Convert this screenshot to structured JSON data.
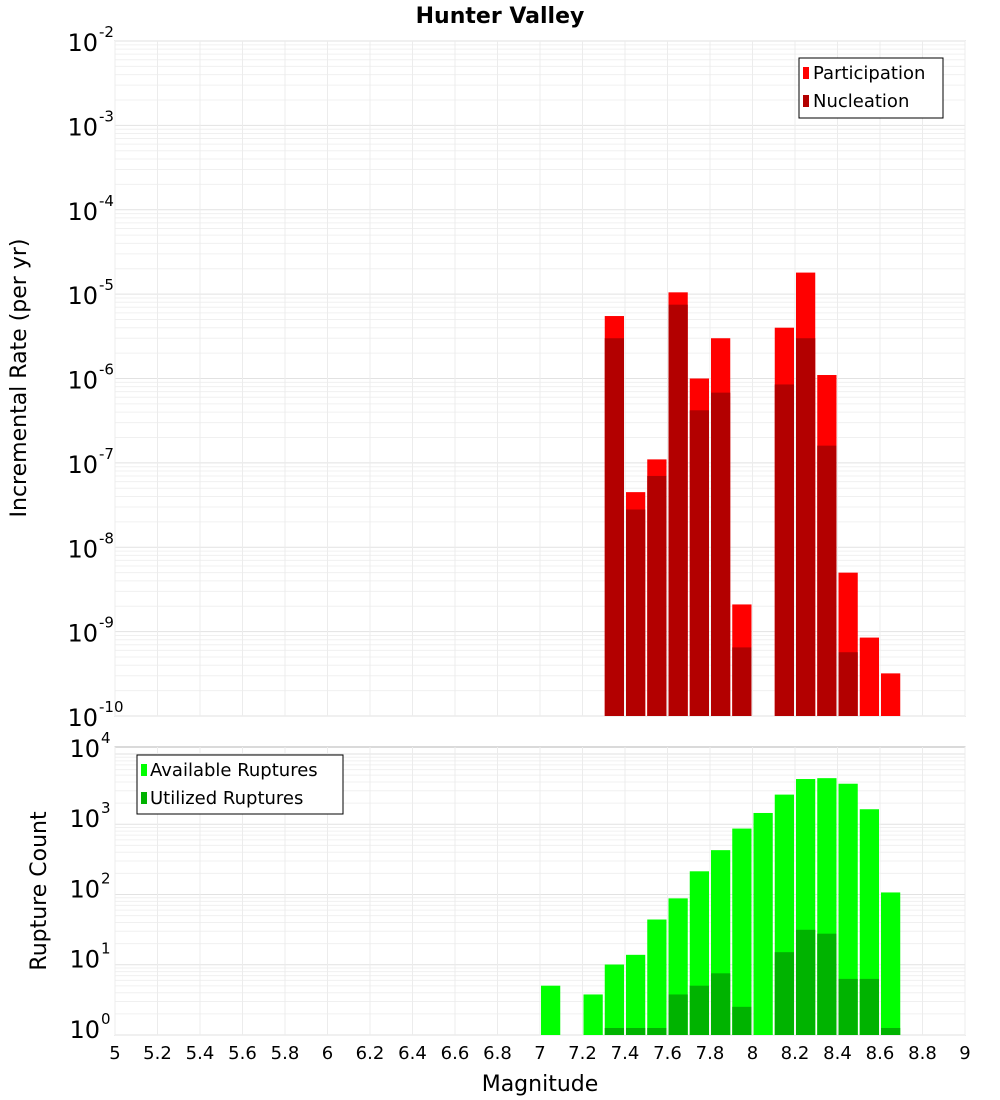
{
  "chart_data": [
    {
      "type": "bar",
      "title": "Hunter Valley",
      "xlabel": "",
      "ylabel": "Incremental Rate (per yr)",
      "yscale": "log",
      "ylim": [
        1e-10,
        0.01
      ],
      "xlim": [
        5,
        9
      ],
      "grid": true,
      "legend_position": "top-right",
      "series": [
        {
          "name": "Participation",
          "color": "#ff0000",
          "x": [
            7.35,
            7.45,
            7.55,
            7.65,
            7.75,
            7.85,
            7.95,
            8.15,
            8.25,
            8.35,
            8.45,
            8.55,
            8.65
          ],
          "values": [
            5.5e-06,
            4.5e-08,
            1.1e-07,
            1.05e-05,
            1e-06,
            3e-06,
            2.1e-09,
            4e-06,
            1.8e-05,
            1.1e-06,
            5e-09,
            8.5e-10,
            3.2e-10
          ]
        },
        {
          "name": "Nucleation",
          "color": "#b30000",
          "x": [
            7.35,
            7.45,
            7.55,
            7.65,
            7.75,
            7.85,
            7.95,
            8.15,
            8.25,
            8.35,
            8.45
          ],
          "values": [
            3e-06,
            2.8e-08,
            7e-08,
            7.5e-06,
            4.2e-07,
            6.8e-07,
            6.5e-10,
            8.5e-07,
            3e-06,
            1.6e-07,
            5.7e-10
          ]
        }
      ]
    },
    {
      "type": "bar",
      "xlabel": "Magnitude",
      "ylabel": "Rupture Count",
      "yscale": "log",
      "ylim": [
        1,
        10000
      ],
      "xlim": [
        5,
        9
      ],
      "grid": true,
      "legend_position": "top-left",
      "series": [
        {
          "name": "Available Ruptures",
          "color": "#00ff00",
          "x": [
            7.05,
            7.25,
            7.35,
            7.45,
            7.55,
            7.65,
            7.75,
            7.85,
            7.95,
            8.05,
            8.15,
            8.25,
            8.35,
            8.45,
            8.55,
            8.65
          ],
          "values": [
            4,
            3,
            8,
            11,
            35,
            70,
            170,
            340,
            690,
            1150,
            2100,
            3500,
            3600,
            3000,
            1300,
            85
          ]
        },
        {
          "name": "Utilized Ruptures",
          "color": "#00b300",
          "x": [
            7.35,
            7.45,
            7.55,
            7.65,
            7.75,
            7.85,
            7.95,
            8.15,
            8.25,
            8.35,
            8.45,
            8.55,
            8.65
          ],
          "values": [
            1,
            1,
            1,
            3,
            4,
            6,
            2,
            12,
            25,
            22,
            5,
            5,
            1
          ]
        }
      ]
    }
  ],
  "x_ticks": [
    "5",
    "5.2",
    "5.4",
    "5.6",
    "5.8",
    "6",
    "6.2",
    "6.4",
    "6.6",
    "6.8",
    "7",
    "7.2",
    "7.4",
    "7.6",
    "7.8",
    "8",
    "8.2",
    "8.4",
    "8.6",
    "8.8",
    "9"
  ],
  "x_tick_values": [
    5,
    5.2,
    5.4,
    5.6,
    5.8,
    6,
    6.2,
    6.4,
    6.6,
    6.8,
    7,
    7.2,
    7.4,
    7.6,
    7.8,
    8,
    8.2,
    8.4,
    8.6,
    8.8,
    9
  ],
  "top_y_tick_exponents": [
    "-2",
    "-3",
    "-4",
    "-5",
    "-6",
    "-7",
    "-8",
    "-9",
    "-10"
  ],
  "bottom_y_tick_exponents": [
    "4",
    "3",
    "2",
    "1",
    "0"
  ],
  "y_tick_base": "10"
}
